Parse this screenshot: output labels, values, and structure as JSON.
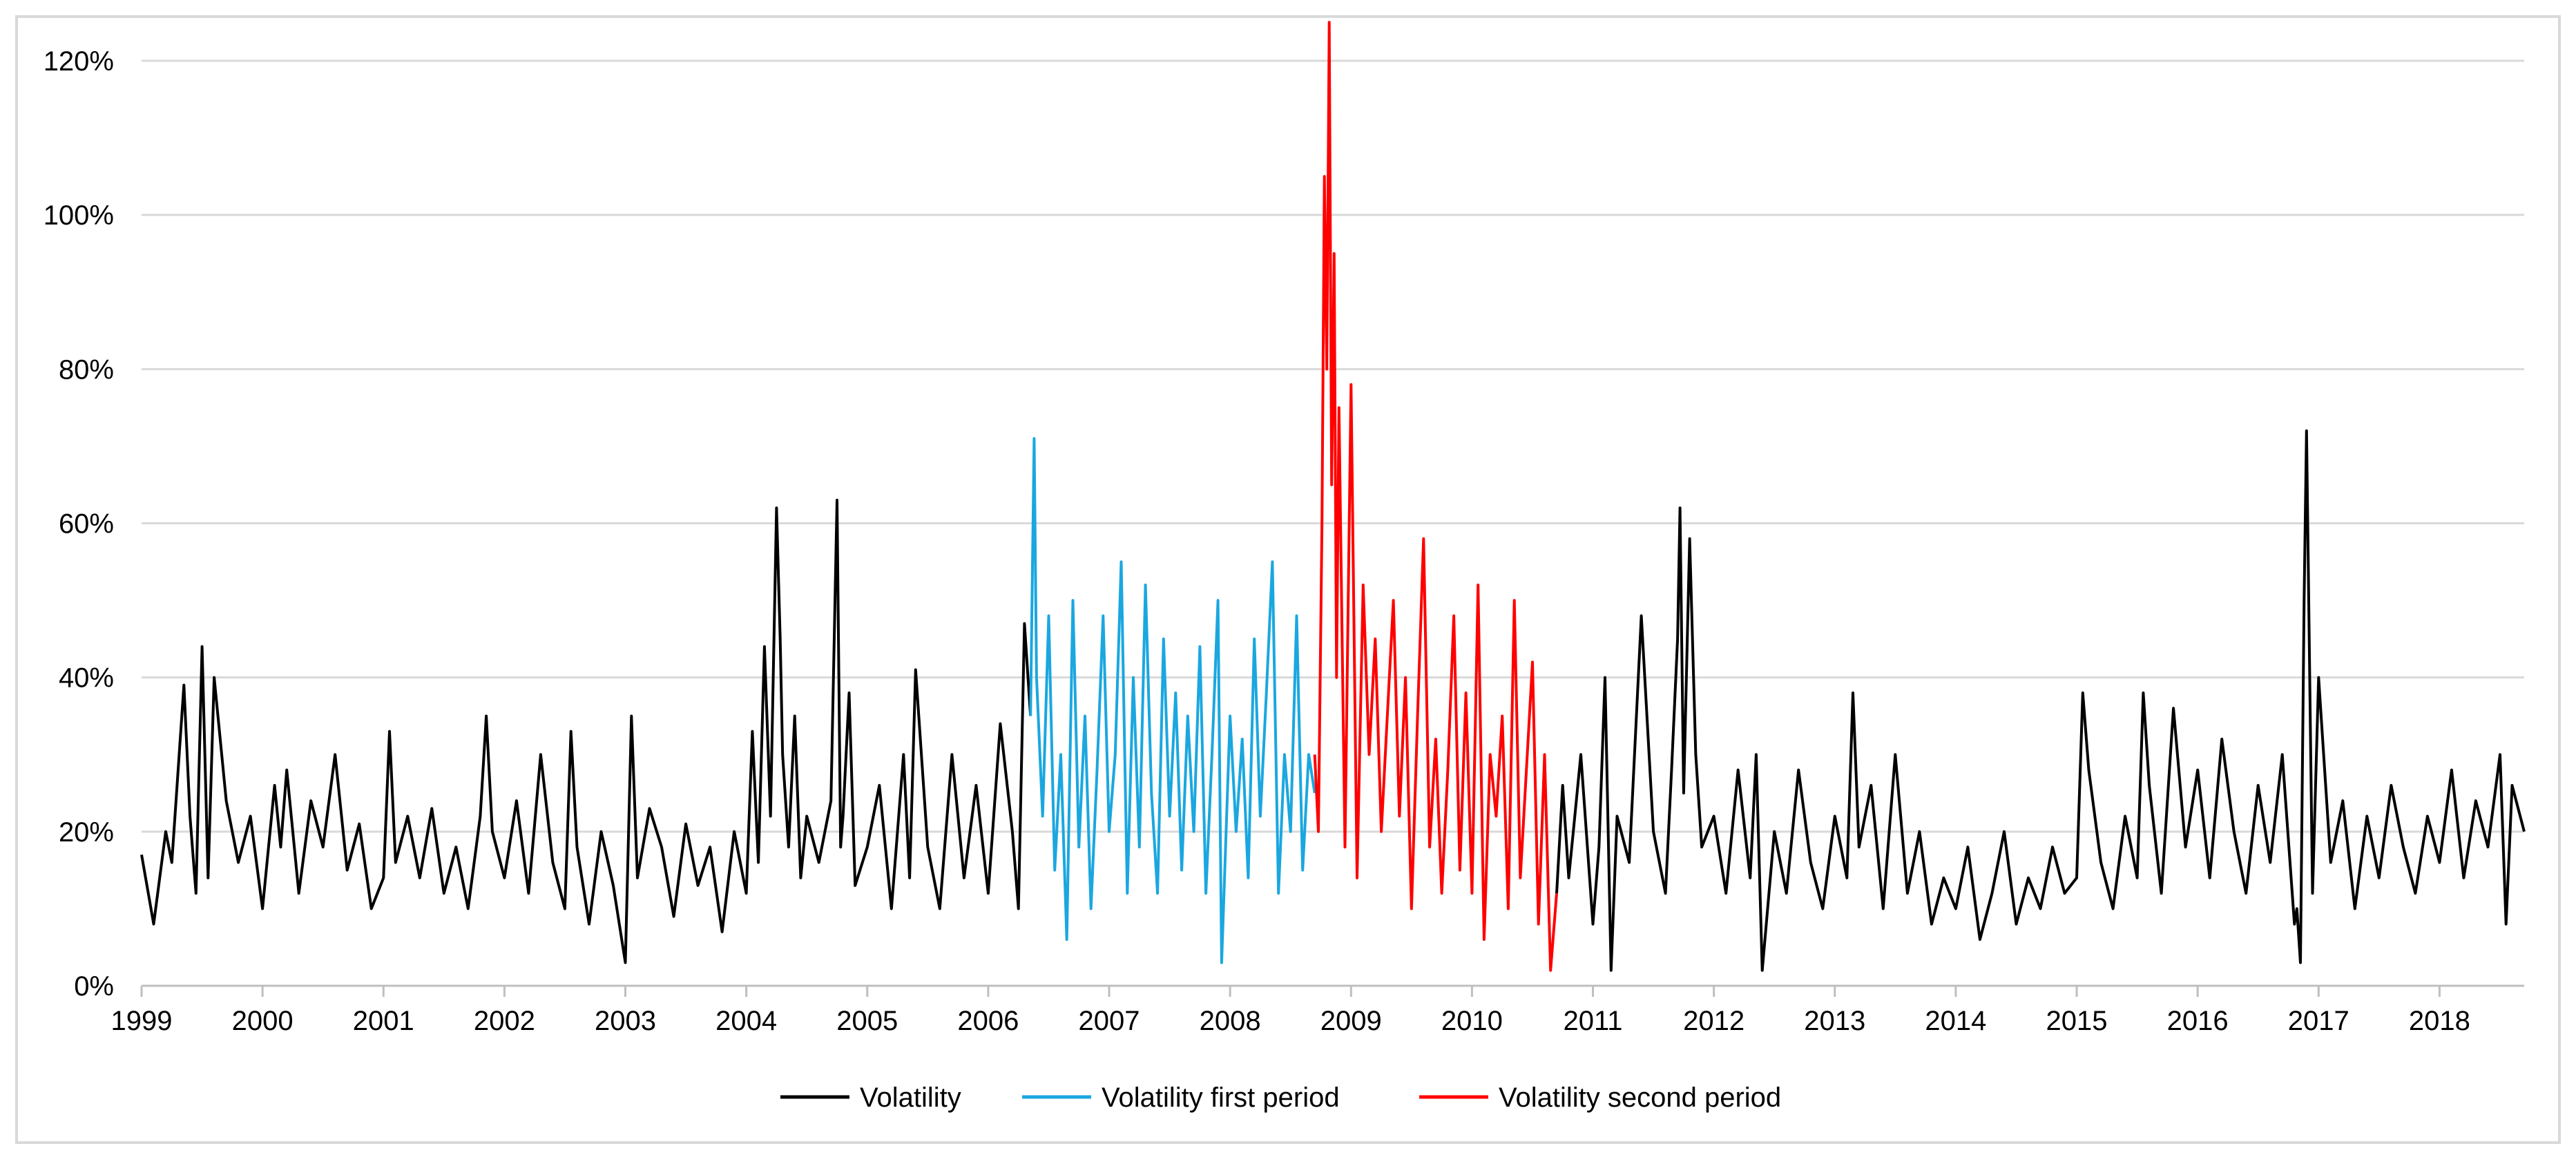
{
  "chart_data": {
    "type": "line",
    "title": "",
    "xlabel": "",
    "ylabel": "",
    "x_tick_labels": [
      "1999",
      "2000",
      "2001",
      "2002",
      "2003",
      "2004",
      "2005",
      "2006",
      "2007",
      "2008",
      "2009",
      "2010",
      "2011",
      "2012",
      "2013",
      "2014",
      "2015",
      "2016",
      "2017",
      "2018"
    ],
    "x_range": [
      1999.0,
      2018.7
    ],
    "y_tick_labels": [
      "0%",
      "20%",
      "40%",
      "60%",
      "80%",
      "100%",
      "120%"
    ],
    "y_ticks": [
      0,
      20,
      40,
      60,
      80,
      100,
      120
    ],
    "ylim": [
      0,
      120
    ],
    "y_unit": "%",
    "grid": "horizontal",
    "legend_position": "bottom",
    "series": [
      {
        "name": "Volatility",
        "color": "#000000",
        "x": [
          1999.0,
          1999.1,
          1999.2,
          1999.25,
          1999.35,
          1999.4,
          1999.45,
          1999.5,
          1999.55,
          1999.6,
          1999.7,
          1999.8,
          1999.9,
          2000.0,
          2000.1,
          2000.15,
          2000.2,
          2000.3,
          2000.4,
          2000.5,
          2000.6,
          2000.7,
          2000.8,
          2000.9,
          2001.0,
          2001.05,
          2001.1,
          2001.2,
          2001.3,
          2001.4,
          2001.5,
          2001.6,
          2001.7,
          2001.8,
          2001.85,
          2001.9,
          2002.0,
          2002.1,
          2002.2,
          2002.3,
          2002.4,
          2002.5,
          2002.55,
          2002.6,
          2002.7,
          2002.8,
          2002.9,
          2003.0,
          2003.05,
          2003.1,
          2003.2,
          2003.3,
          2003.4,
          2003.5,
          2003.6,
          2003.7,
          2003.8,
          2003.9,
          2004.0,
          2004.05,
          2004.1,
          2004.15,
          2004.2,
          2004.25,
          2004.28,
          2004.3,
          2004.35,
          2004.4,
          2004.45,
          2004.5,
          2004.6,
          2004.7,
          2004.75,
          2004.78,
          2004.8,
          2004.85,
          2004.9,
          2005.0,
          2005.1,
          2005.2,
          2005.3,
          2005.35,
          2005.4,
          2005.5,
          2005.6,
          2005.7,
          2005.8,
          2005.9,
          2006.0,
          2006.1,
          2006.2,
          2006.25,
          2006.3,
          2006.35
        ],
        "values": [
          17,
          8,
          20,
          16,
          39,
          22,
          12,
          44,
          14,
          40,
          24,
          16,
          22,
          10,
          26,
          18,
          28,
          12,
          24,
          18,
          30,
          15,
          21,
          10,
          14,
          33,
          16,
          22,
          14,
          23,
          12,
          18,
          10,
          22,
          35,
          20,
          14,
          24,
          12,
          30,
          16,
          10,
          33,
          18,
          8,
          20,
          13,
          3,
          35,
          14,
          23,
          18,
          9,
          21,
          13,
          18,
          7,
          20,
          12,
          33,
          16,
          44,
          22,
          62,
          45,
          30,
          18,
          35,
          14,
          22,
          16,
          24,
          63,
          18,
          22,
          38,
          13,
          18,
          26,
          10,
          30,
          14,
          41,
          18,
          10,
          30,
          14,
          26,
          12,
          34,
          20,
          10,
          47,
          35
        ]
      },
      {
        "name": "Volatility first period",
        "color": "#1aa7e0",
        "x": [
          2006.35,
          2006.38,
          2006.4,
          2006.45,
          2006.5,
          2006.55,
          2006.6,
          2006.65,
          2006.7,
          2006.75,
          2006.8,
          2006.85,
          2006.9,
          2006.95,
          2007.0,
          2007.05,
          2007.1,
          2007.15,
          2007.2,
          2007.25,
          2007.3,
          2007.35,
          2007.4,
          2007.45,
          2007.5,
          2007.55,
          2007.6,
          2007.65,
          2007.7,
          2007.75,
          2007.8,
          2007.85,
          2007.9,
          2007.93,
          2008.0,
          2008.05,
          2008.1,
          2008.15,
          2008.2,
          2008.25,
          2008.3,
          2008.35,
          2008.4,
          2008.45,
          2008.5,
          2008.55,
          2008.6,
          2008.65,
          2008.7
        ],
        "values": [
          35,
          71,
          40,
          22,
          48,
          15,
          30,
          6,
          50,
          18,
          35,
          10,
          28,
          48,
          20,
          30,
          55,
          12,
          40,
          18,
          52,
          25,
          12,
          45,
          22,
          38,
          15,
          35,
          20,
          44,
          12,
          30,
          50,
          3,
          35,
          20,
          32,
          14,
          45,
          22,
          38,
          55,
          12,
          30,
          20,
          48,
          15,
          30,
          25
        ]
      },
      {
        "name": "Volatility second period",
        "color": "#ff0000",
        "x": [
          2008.7,
          2008.73,
          2008.76,
          2008.78,
          2008.8,
          2008.82,
          2008.84,
          2008.86,
          2008.88,
          2008.9,
          2008.95,
          2009.0,
          2009.05,
          2009.1,
          2009.15,
          2009.2,
          2009.25,
          2009.3,
          2009.35,
          2009.4,
          2009.45,
          2009.5,
          2009.55,
          2009.6,
          2009.65,
          2009.7,
          2009.75,
          2009.8,
          2009.85,
          2009.9,
          2009.95,
          2010.0,
          2010.05,
          2010.1,
          2010.15,
          2010.2,
          2010.25,
          2010.3,
          2010.35,
          2010.4,
          2010.45,
          2010.5,
          2010.55,
          2010.6,
          2010.65,
          2010.7
        ],
        "values": [
          30,
          20,
          60,
          105,
          80,
          125,
          65,
          95,
          40,
          75,
          18,
          78,
          14,
          52,
          30,
          45,
          20,
          35,
          50,
          22,
          40,
          10,
          35,
          58,
          18,
          32,
          12,
          28,
          48,
          15,
          38,
          12,
          52,
          6,
          30,
          22,
          35,
          10,
          50,
          14,
          28,
          42,
          8,
          30,
          2,
          12
        ]
      },
      {
        "name": "Volatility",
        "color": "#000000",
        "x": [
          2010.7,
          2010.75,
          2010.8,
          2010.85,
          2010.9,
          2011.0,
          2011.05,
          2011.1,
          2011.15,
          2011.2,
          2011.3,
          2011.4,
          2011.5,
          2011.6,
          2011.65,
          2011.7,
          2011.72,
          2011.75,
          2011.8,
          2011.85,
          2011.9,
          2012.0,
          2012.1,
          2012.2,
          2012.3,
          2012.35,
          2012.4,
          2012.5,
          2012.6,
          2012.7,
          2012.8,
          2012.9,
          2013.0,
          2013.1,
          2013.15,
          2013.2,
          2013.3,
          2013.4,
          2013.5,
          2013.6,
          2013.7,
          2013.8,
          2013.9,
          2014.0,
          2014.1,
          2014.2,
          2014.3,
          2014.4,
          2014.5,
          2014.6,
          2014.7,
          2014.8,
          2014.9,
          2015.0,
          2015.05,
          2015.1,
          2015.2,
          2015.3,
          2015.4,
          2015.5,
          2015.55,
          2015.6,
          2015.7,
          2015.8,
          2015.9,
          2016.0,
          2016.1,
          2016.2,
          2016.3,
          2016.4,
          2016.5,
          2016.6,
          2016.7,
          2016.8,
          2016.82,
          2016.85,
          2016.88,
          2016.9,
          2016.95,
          2017.0,
          2017.1,
          2017.2,
          2017.3,
          2017.4,
          2017.5,
          2017.6,
          2017.7,
          2017.8,
          2017.9,
          2018.0,
          2018.1,
          2018.2,
          2018.3,
          2018.4,
          2018.5,
          2018.55,
          2018.6,
          2018.7
        ],
        "values": [
          12,
          26,
          14,
          22,
          30,
          8,
          18,
          40,
          2,
          22,
          16,
          48,
          20,
          12,
          28,
          45,
          62,
          25,
          58,
          30,
          18,
          22,
          12,
          28,
          14,
          30,
          2,
          20,
          12,
          28,
          16,
          10,
          22,
          14,
          38,
          18,
          26,
          10,
          30,
          12,
          20,
          8,
          14,
          10,
          18,
          6,
          12,
          20,
          8,
          14,
          10,
          18,
          12,
          14,
          38,
          28,
          16,
          10,
          22,
          14,
          38,
          26,
          12,
          36,
          18,
          28,
          14,
          32,
          20,
          12,
          26,
          16,
          30,
          8,
          10,
          3,
          50,
          72,
          12,
          40,
          16,
          24,
          10,
          22,
          14,
          26,
          18,
          12,
          22,
          16,
          28,
          14,
          24,
          18,
          30,
          8,
          26,
          20
        ]
      }
    ]
  }
}
